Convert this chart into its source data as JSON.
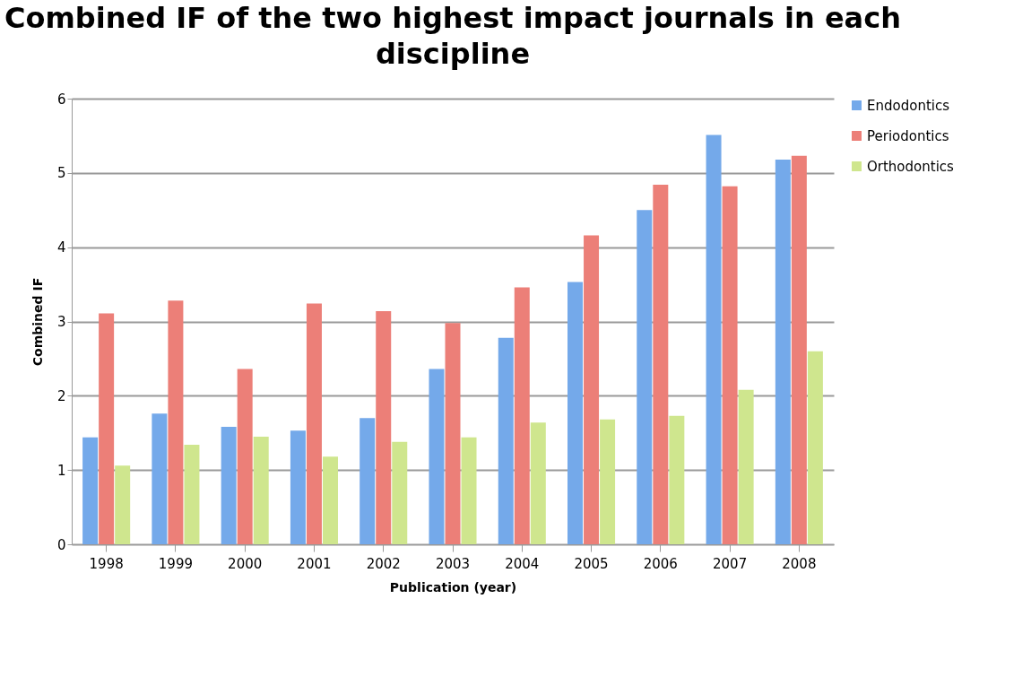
{
  "chart_data": {
    "type": "bar",
    "title": "Combined IF of the two highest impact journals in each discipline",
    "xlabel": "Publication (year)",
    "ylabel": "Combined IF",
    "categories": [
      "1998",
      "1999",
      "2000",
      "2001",
      "2002",
      "2003",
      "2004",
      "2005",
      "2006",
      "2007",
      "2008"
    ],
    "series": [
      {
        "name": "Endodontics",
        "color": "#74a9ea",
        "values": [
          1.44,
          1.76,
          1.58,
          1.53,
          1.7,
          2.36,
          2.78,
          3.53,
          4.5,
          5.51,
          5.18
        ]
      },
      {
        "name": "Periodontics",
        "color": "#ec7f78",
        "values": [
          3.11,
          3.28,
          2.36,
          3.24,
          3.14,
          2.98,
          3.46,
          4.16,
          4.84,
          4.82,
          5.23
        ]
      },
      {
        "name": "Orthodontics",
        "color": "#cfe68e",
        "values": [
          1.06,
          1.34,
          1.45,
          1.18,
          1.38,
          1.44,
          1.64,
          1.68,
          1.73,
          2.08,
          2.6
        ]
      }
    ],
    "ylim": [
      0,
      6
    ],
    "yticks": [
      0,
      1,
      2,
      3,
      4,
      5,
      6
    ],
    "grid": "y",
    "legend": "right"
  }
}
